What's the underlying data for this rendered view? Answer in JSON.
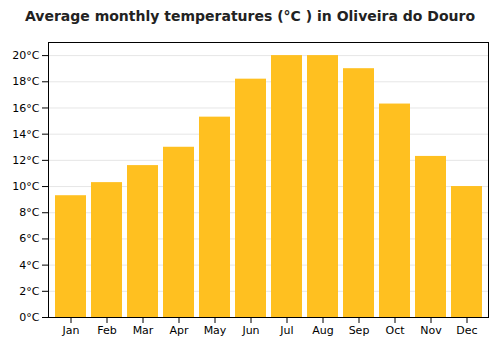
{
  "chart_data": {
    "type": "bar",
    "title": "Average monthly temperatures (°C ) in Oliveira do Douro",
    "categories": [
      "Jan",
      "Feb",
      "Mar",
      "Apr",
      "May",
      "Jun",
      "Jul",
      "Aug",
      "Sep",
      "Oct",
      "Nov",
      "Dec"
    ],
    "values": [
      9.3,
      10.3,
      11.6,
      13.0,
      15.3,
      18.2,
      20.0,
      20.0,
      19.0,
      16.3,
      12.3,
      10.0
    ],
    "color": "#FFC020",
    "ylim": [
      0,
      21
    ],
    "yticks": [
      {
        "value": 0,
        "label": "0°C"
      },
      {
        "value": 2,
        "label": "2°C"
      },
      {
        "value": 4,
        "label": "4°C"
      },
      {
        "value": 6,
        "label": "6°C"
      },
      {
        "value": 8,
        "label": "8°C"
      },
      {
        "value": 10,
        "label": "10°C"
      },
      {
        "value": 12,
        "label": "12°C"
      },
      {
        "value": 14,
        "label": "14°C"
      },
      {
        "value": 16,
        "label": "16°C"
      },
      {
        "value": 18,
        "label": "18°C"
      },
      {
        "value": 20,
        "label": "20°C"
      }
    ],
    "grid": true
  }
}
